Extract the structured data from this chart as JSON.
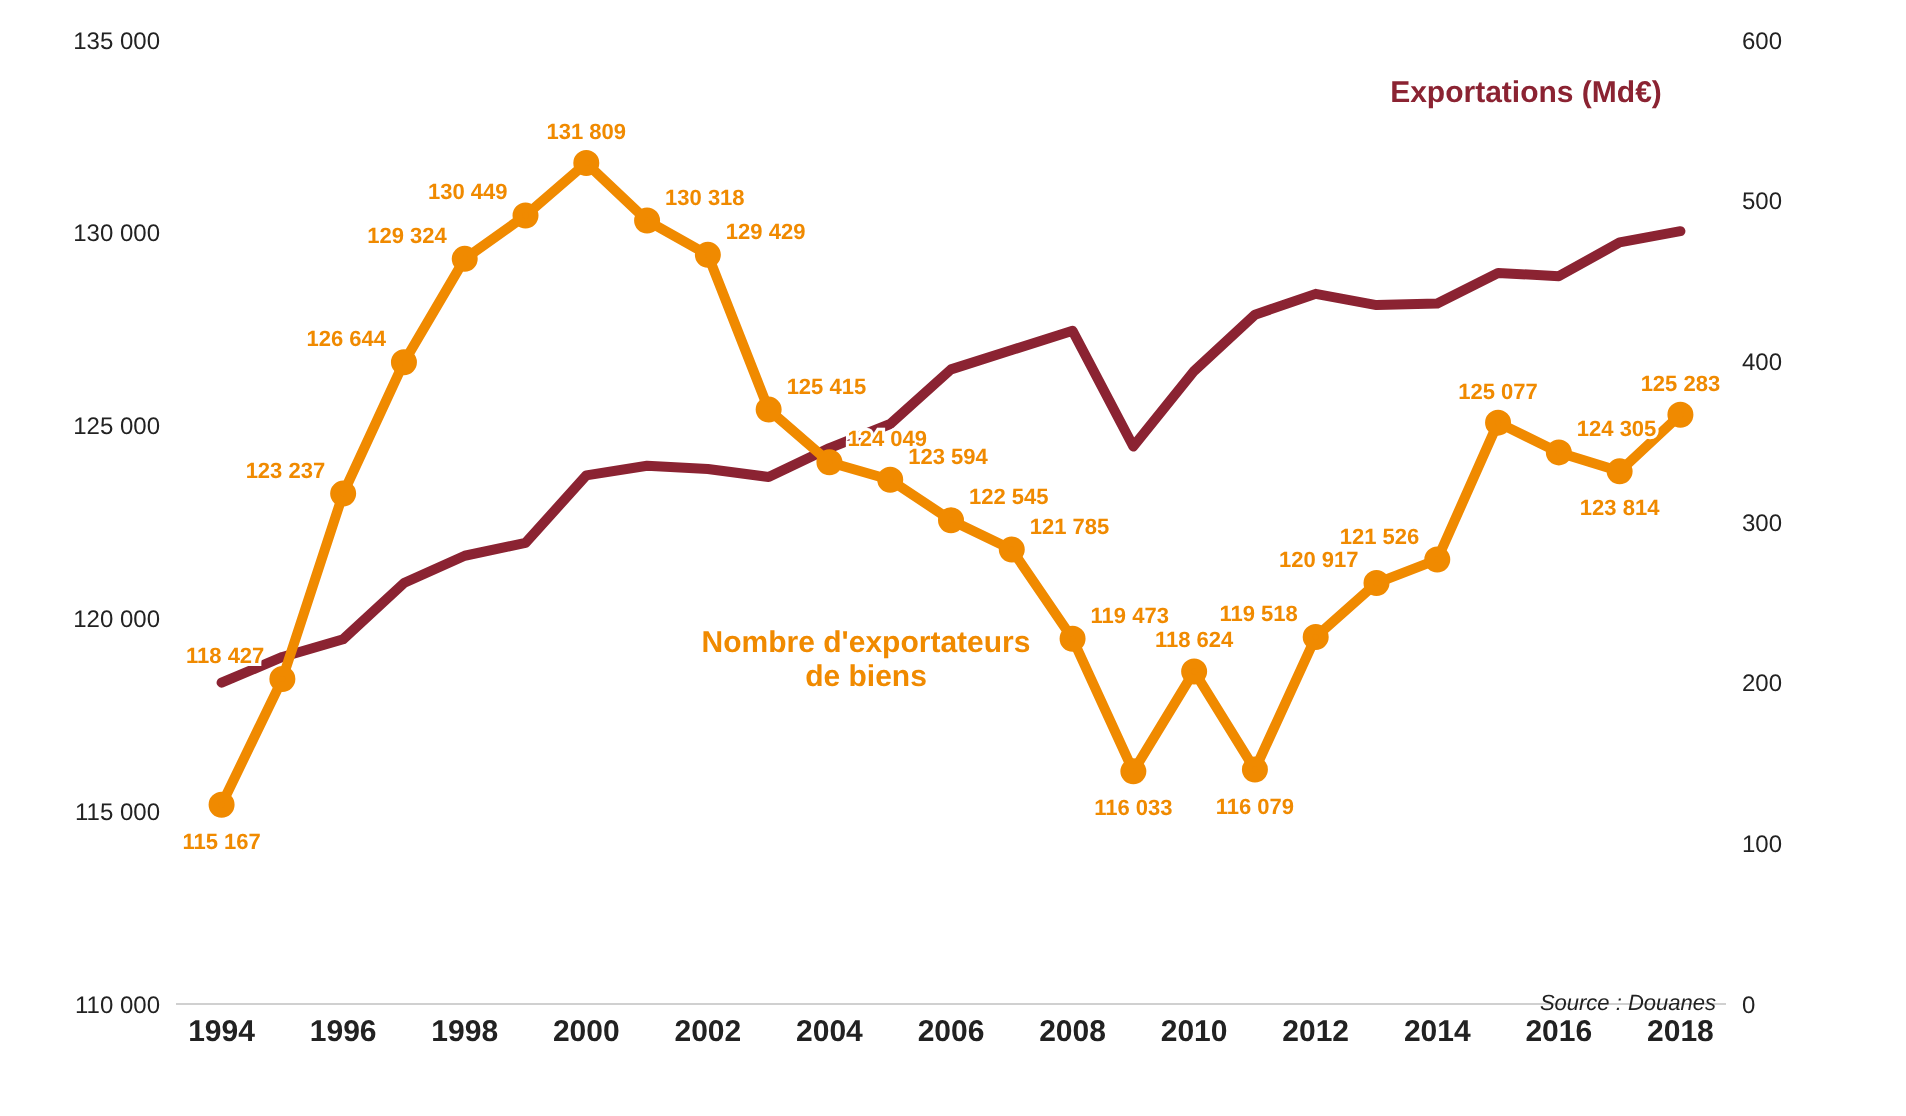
{
  "chart_data": {
    "type": "line",
    "x": [
      1994,
      1995,
      1996,
      1997,
      1998,
      1999,
      2000,
      2001,
      2002,
      2003,
      2004,
      2005,
      2006,
      2007,
      2008,
      2009,
      2010,
      2011,
      2012,
      2013,
      2014,
      2015,
      2016,
      2017,
      2018
    ],
    "series": [
      {
        "name": "Exportations (Md€)",
        "color": "#8b2332",
        "axis": "y2",
        "marker": "none",
        "values": [
          200,
          216,
          227,
          262,
          279,
          287,
          329,
          335,
          333,
          328,
          346,
          361,
          395,
          407,
          419,
          347,
          394,
          429,
          442,
          435,
          436,
          455,
          453,
          474,
          481
        ]
      },
      {
        "name": "Nombre d'exportateurs de biens",
        "color": "#f08a00",
        "marker": "circle",
        "values": [
          115167,
          118427,
          123237,
          126644,
          129324,
          130449,
          131809,
          130318,
          129429,
          125415,
          124049,
          123594,
          122545,
          121785,
          119473,
          116033,
          118624,
          116079,
          119518,
          120917,
          121526,
          125077,
          124305,
          123814,
          125283
        ],
        "value_labels": [
          "115 167",
          "118 427",
          "123 237",
          "126 644",
          "129 324",
          "130 449",
          "131 809",
          "130 318",
          "129 429",
          "125 415",
          "124 049",
          "123 594",
          "122 545",
          "121 785",
          "119 473",
          "116 033",
          "118 624",
          "116 079",
          "119 518",
          "120 917",
          "121 526",
          "125 077",
          "124 305",
          "123 814",
          "125 283"
        ]
      }
    ],
    "xlim": [
      1993.25,
      2018.75
    ],
    "xticks": [
      1994,
      1996,
      1998,
      2000,
      2002,
      2004,
      2006,
      2008,
      2010,
      2012,
      2014,
      2016,
      2018
    ],
    "ylim": [
      110000,
      135000
    ],
    "yticks": [
      {
        "value": 110000,
        "label": "110 000"
      },
      {
        "value": 115000,
        "label": "115 000"
      },
      {
        "value": 120000,
        "label": "120 000"
      },
      {
        "value": 125000,
        "label": "125 000"
      },
      {
        "value": 130000,
        "label": "130 000"
      },
      {
        "value": 135000,
        "label": "135 000"
      }
    ],
    "y2lim": [
      0,
      600
    ],
    "y2ticks": [
      0,
      100,
      200,
      300,
      400,
      500,
      600
    ],
    "line_style": "solid",
    "annotations": [
      "Source : Douanes"
    ]
  }
}
